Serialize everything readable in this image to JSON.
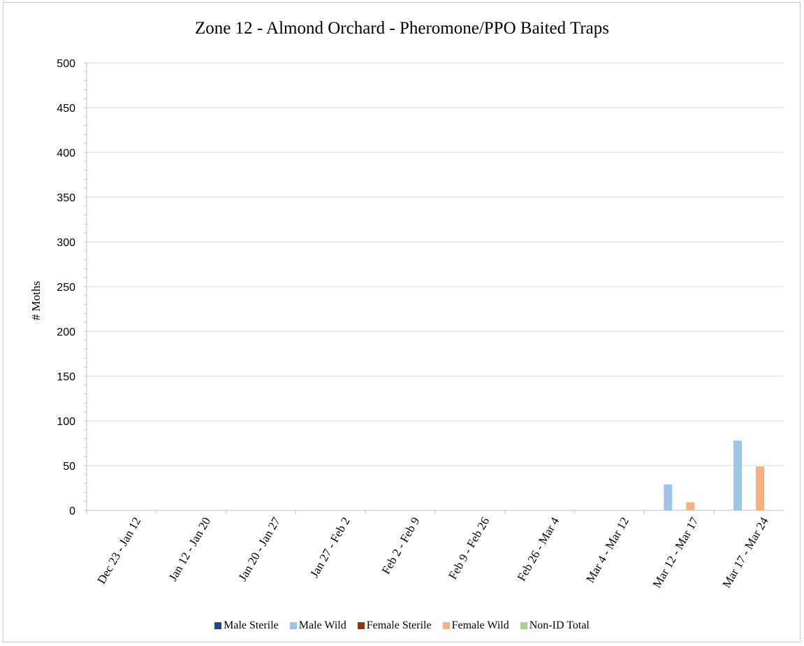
{
  "chart_data": {
    "type": "bar",
    "title": "Zone 12 - Almond Orchard - Pheromone/PPO Baited Traps",
    "xlabel": "",
    "ylabel": "# Moths",
    "ylim": [
      0,
      500
    ],
    "yticks": [
      "0",
      "50",
      "100",
      "150",
      "200",
      "250",
      "300",
      "350",
      "400",
      "450",
      "500"
    ],
    "grid": "horizontal",
    "legend_position": "bottom",
    "categories": [
      "Dec 23 - Jan 12",
      "Jan 12 - Jan 20",
      "Jan 20 - Jan 27",
      "Jan 27 - Feb 2",
      "Feb 2 - Feb 9",
      "Feb 9 - Feb 26",
      "Feb 26 - Mar 4",
      "Mar 4 - Mar 12",
      "Mar 12 - Mar 17",
      "Mar 17 - Mar 24"
    ],
    "series": [
      {
        "name": "Male Sterile",
        "color": "#1f4e79",
        "values": [
          0,
          0,
          0,
          0,
          0,
          0,
          0,
          0,
          0,
          0
        ]
      },
      {
        "name": "Male Wild",
        "color": "#9dc3e6",
        "values": [
          0,
          0,
          0,
          0,
          0,
          0,
          0,
          0,
          29,
          78
        ]
      },
      {
        "name": "Female Sterile",
        "color": "#843c0c",
        "values": [
          0,
          0,
          0,
          0,
          0,
          0,
          0,
          0,
          0,
          0
        ]
      },
      {
        "name": "Female Wild",
        "color": "#f4b183",
        "values": [
          0,
          0,
          0,
          0,
          0,
          0,
          0,
          0,
          9,
          49
        ]
      },
      {
        "name": "Non-ID Total",
        "color": "#a9d18e",
        "values": [
          0,
          0,
          0,
          0,
          0,
          0,
          0,
          0,
          0,
          0
        ]
      }
    ]
  }
}
